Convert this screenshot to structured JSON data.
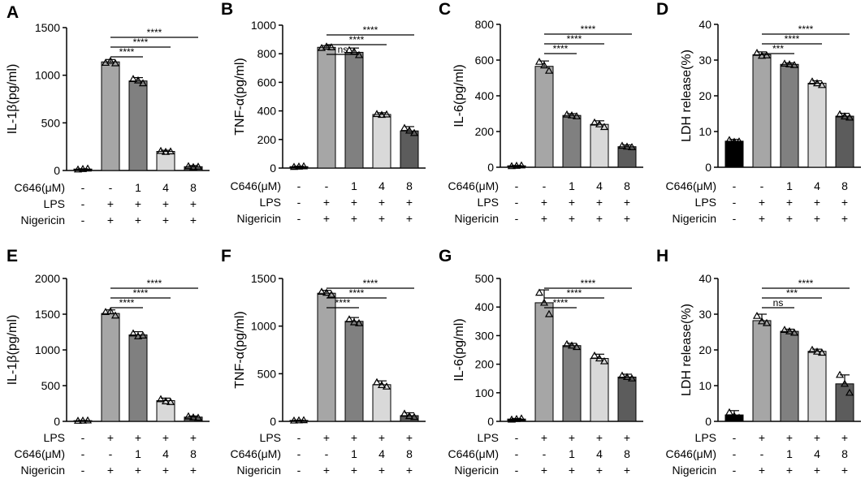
{
  "chart_data": [
    {
      "panel": "A",
      "type": "bar",
      "ylabel": "IL-1β(pg/ml)",
      "ylim": [
        0,
        1500
      ],
      "yticks": [
        0,
        500,
        1000,
        1500
      ],
      "values": [
        15,
        1140,
        940,
        200,
        40
      ],
      "errors": [
        3,
        25,
        35,
        12,
        12
      ],
      "points": [
        [
          10,
          15,
          20
        ],
        [
          1130,
          1150,
          1125
        ],
        [
          960,
          945,
          915
        ],
        [
          205,
          195,
          200
        ],
        [
          45,
          35,
          40
        ]
      ],
      "bar_colors": [
        "#000000",
        "#a6a6a6",
        "#808080",
        "#d9d9d9",
        "#5c5c5c"
      ],
      "condition_rows": [
        {
          "label": "C646(μM)",
          "values": [
            "-",
            "-",
            "1",
            "4",
            "8"
          ]
        },
        {
          "label": "LPS",
          "values": [
            "-",
            "+",
            "+",
            "+",
            "+"
          ]
        },
        {
          "label": "Nigericin",
          "values": [
            "-",
            "+",
            "+",
            "+",
            "+"
          ]
        }
      ],
      "significance": [
        {
          "from": 1,
          "to": 2,
          "label": "****"
        },
        {
          "from": 1,
          "to": 3,
          "label": "****"
        },
        {
          "from": 1,
          "to": 4,
          "label": "****"
        }
      ]
    },
    {
      "panel": "B",
      "type": "bar",
      "ylabel": "TNF-α(pg/ml)",
      "ylim": [
        0,
        1000
      ],
      "yticks": [
        0,
        200,
        400,
        600,
        800,
        1000
      ],
      "values": [
        10,
        845,
        810,
        375,
        260
      ],
      "errors": [
        3,
        12,
        30,
        12,
        30
      ],
      "points": [
        [
          8,
          10,
          12
        ],
        [
          840,
          850,
          845
        ],
        [
          825,
          815,
          790
        ],
        [
          378,
          372,
          375
        ],
        [
          280,
          262,
          245
        ]
      ],
      "bar_colors": [
        "#000000",
        "#a6a6a6",
        "#808080",
        "#d9d9d9",
        "#5c5c5c"
      ],
      "condition_rows": [
        {
          "label": "C646(μM)",
          "values": [
            "-",
            "-",
            "1",
            "4",
            "8"
          ]
        },
        {
          "label": "LPS",
          "values": [
            "-",
            "+",
            "+",
            "+",
            "+"
          ]
        },
        {
          "label": "Nigericin",
          "values": [
            "-",
            "+",
            "+",
            "+",
            "+"
          ]
        }
      ],
      "significance": [
        {
          "from": 1,
          "to": 2,
          "label": "ns"
        },
        {
          "from": 1,
          "to": 3,
          "label": "****"
        },
        {
          "from": 1,
          "to": 4,
          "label": "****"
        }
      ]
    },
    {
      "panel": "C",
      "type": "bar",
      "ylabel": "IL-6(pg/ml)",
      "ylim": [
        0,
        800
      ],
      "yticks": [
        0,
        200,
        400,
        600,
        800
      ],
      "values": [
        8,
        565,
        290,
        240,
        115
      ],
      "errors": [
        2,
        30,
        10,
        20,
        10
      ],
      "points": [
        [
          6,
          8,
          10
        ],
        [
          590,
          570,
          540
        ],
        [
          295,
          290,
          285
        ],
        [
          250,
          240,
          225
        ],
        [
          120,
          115,
          112
        ]
      ],
      "bar_colors": [
        "#000000",
        "#a6a6a6",
        "#808080",
        "#d9d9d9",
        "#5c5c5c"
      ],
      "condition_rows": [
        {
          "label": "C646(μM)",
          "values": [
            "-",
            "-",
            "1",
            "4",
            "8"
          ]
        },
        {
          "label": "LPS",
          "values": [
            "-",
            "+",
            "+",
            "+",
            "+"
          ]
        },
        {
          "label": "Nigericin",
          "values": [
            "-",
            "+",
            "+",
            "+",
            "+"
          ]
        }
      ],
      "significance": [
        {
          "from": 1,
          "to": 2,
          "label": "****"
        },
        {
          "from": 1,
          "to": 3,
          "label": "****"
        },
        {
          "from": 1,
          "to": 4,
          "label": "****"
        }
      ]
    },
    {
      "panel": "D",
      "type": "bar",
      "ylabel": "LDH release(%)",
      "ylim": [
        0,
        40
      ],
      "yticks": [
        0,
        10,
        20,
        30,
        40
      ],
      "values": [
        7.3,
        31.5,
        28.8,
        23.5,
        14.3
      ],
      "errors": [
        0.5,
        0.8,
        0.4,
        0.7,
        0.8
      ],
      "points": [
        [
          7.6,
          7.1,
          7.2
        ],
        [
          32,
          31.2,
          31.3
        ],
        [
          29,
          28.8,
          28.6
        ],
        [
          24,
          23.5,
          23
        ],
        [
          14.8,
          14.2,
          13.9
        ]
      ],
      "bar_colors": [
        "#000000",
        "#a6a6a6",
        "#808080",
        "#d9d9d9",
        "#5c5c5c"
      ],
      "condition_rows": [
        {
          "label": "C646(μM)",
          "values": [
            "-",
            "-",
            "1",
            "4",
            "8"
          ]
        },
        {
          "label": "LPS",
          "values": [
            "-",
            "+",
            "+",
            "+",
            "+"
          ]
        },
        {
          "label": "Nigericin",
          "values": [
            "-",
            "+",
            "+",
            "+",
            "+"
          ]
        }
      ],
      "significance": [
        {
          "from": 1,
          "to": 2,
          "label": "***"
        },
        {
          "from": 1,
          "to": 3,
          "label": "****"
        },
        {
          "from": 1,
          "to": 4,
          "label": "****"
        }
      ]
    },
    {
      "panel": "E",
      "type": "bar",
      "ylabel": "IL-1β(pg/ml)",
      "ylim": [
        0,
        2000
      ],
      "yticks": [
        0,
        500,
        1000,
        1500,
        2000
      ],
      "values": [
        10,
        1510,
        1210,
        290,
        60
      ],
      "errors": [
        3,
        50,
        45,
        35,
        15
      ],
      "points": [
        [
          8,
          10,
          12
        ],
        [
          1530,
          1540,
          1480
        ],
        [
          1230,
          1190,
          1200
        ],
        [
          310,
          280,
          270
        ],
        [
          70,
          55,
          50
        ]
      ],
      "bar_colors": [
        "#000000",
        "#a6a6a6",
        "#808080",
        "#d9d9d9",
        "#5c5c5c"
      ],
      "condition_rows": [
        {
          "label": "LPS",
          "values": [
            "-",
            "+",
            "+",
            "+",
            "+"
          ]
        },
        {
          "label": "C646(μM)",
          "values": [
            "-",
            "-",
            "1",
            "4",
            "8"
          ]
        },
        {
          "label": "Nigericin",
          "values": [
            "-",
            "+",
            "+",
            "+",
            "+"
          ]
        }
      ],
      "significance": [
        {
          "from": 1,
          "to": 2,
          "label": "****"
        },
        {
          "from": 1,
          "to": 3,
          "label": "****"
        },
        {
          "from": 1,
          "to": 4,
          "label": "****"
        }
      ]
    },
    {
      "panel": "F",
      "type": "bar",
      "ylabel": "TNF-α(pg/ml)",
      "ylim": [
        0,
        1500
      ],
      "yticks": [
        0,
        500,
        1000,
        1500
      ],
      "values": [
        10,
        1345,
        1050,
        385,
        60
      ],
      "errors": [
        3,
        30,
        40,
        40,
        30
      ],
      "points": [
        [
          8,
          10,
          12
        ],
        [
          1360,
          1350,
          1330
        ],
        [
          1070,
          1040,
          1030
        ],
        [
          410,
          380,
          365
        ],
        [
          80,
          55,
          45
        ]
      ],
      "bar_colors": [
        "#000000",
        "#a6a6a6",
        "#808080",
        "#d9d9d9",
        "#5c5c5c"
      ],
      "condition_rows": [
        {
          "label": "LPS",
          "values": [
            "-",
            "+",
            "+",
            "+",
            "+"
          ]
        },
        {
          "label": "C646(μM)",
          "values": [
            "-",
            "-",
            "1",
            "4",
            "8"
          ]
        },
        {
          "label": "Nigericin",
          "values": [
            "-",
            "+",
            "+",
            "+",
            "+"
          ]
        }
      ],
      "significance": [
        {
          "from": 1,
          "to": 2,
          "label": "****"
        },
        {
          "from": 1,
          "to": 3,
          "label": "****"
        },
        {
          "from": 1,
          "to": 4,
          "label": "****"
        }
      ]
    },
    {
      "panel": "G",
      "type": "bar",
      "ylabel": "IL-6(pg/ml)",
      "ylim": [
        0,
        500
      ],
      "yticks": [
        0,
        100,
        200,
        300,
        400,
        500
      ],
      "values": [
        8,
        415,
        265,
        220,
        155
      ],
      "errors": [
        2,
        45,
        8,
        15,
        10
      ],
      "points": [
        [
          6,
          8,
          10
        ],
        [
          450,
          415,
          375
        ],
        [
          270,
          265,
          260
        ],
        [
          230,
          220,
          210
        ],
        [
          160,
          155,
          150
        ]
      ],
      "bar_colors": [
        "#000000",
        "#a6a6a6",
        "#808080",
        "#d9d9d9",
        "#5c5c5c"
      ],
      "condition_rows": [
        {
          "label": "LPS",
          "values": [
            "-",
            "+",
            "+",
            "+",
            "+"
          ]
        },
        {
          "label": "C646(μM)",
          "values": [
            "-",
            "-",
            "1",
            "4",
            "8"
          ]
        },
        {
          "label": "Nigericin",
          "values": [
            "-",
            "+",
            "+",
            "+",
            "+"
          ]
        }
      ],
      "significance": [
        {
          "from": 1,
          "to": 2,
          "label": "****"
        },
        {
          "from": 1,
          "to": 3,
          "label": "****"
        },
        {
          "from": 1,
          "to": 4,
          "label": "****"
        }
      ]
    },
    {
      "panel": "H",
      "type": "bar",
      "ylabel": "LDH release(%)",
      "ylim": [
        0,
        40
      ],
      "yticks": [
        0,
        10,
        20,
        30,
        40
      ],
      "values": [
        1.8,
        28.2,
        25.2,
        19.6,
        10.5
      ],
      "errors": [
        1.2,
        1.8,
        0.6,
        0.6,
        2.5
      ],
      "points": [
        [
          2.5,
          1.5,
          1.0
        ],
        [
          29.5,
          28,
          27.5
        ],
        [
          25.6,
          25.2,
          24.8
        ],
        [
          20,
          19.5,
          19.2
        ],
        [
          13,
          10.5,
          8
        ]
      ],
      "bar_colors": [
        "#000000",
        "#a6a6a6",
        "#808080",
        "#d9d9d9",
        "#5c5c5c"
      ],
      "condition_rows": [
        {
          "label": "LPS",
          "values": [
            "-",
            "+",
            "+",
            "+",
            "+"
          ]
        },
        {
          "label": "C646(μM)",
          "values": [
            "-",
            "-",
            "1",
            "4",
            "8"
          ]
        },
        {
          "label": "Nigericin",
          "values": [
            "-",
            "+",
            "+",
            "+",
            "+"
          ]
        }
      ],
      "significance": [
        {
          "from": 1,
          "to": 2,
          "label": "ns"
        },
        {
          "from": 1,
          "to": 3,
          "label": "***"
        },
        {
          "from": 1,
          "to": 4,
          "label": "****"
        }
      ]
    }
  ]
}
